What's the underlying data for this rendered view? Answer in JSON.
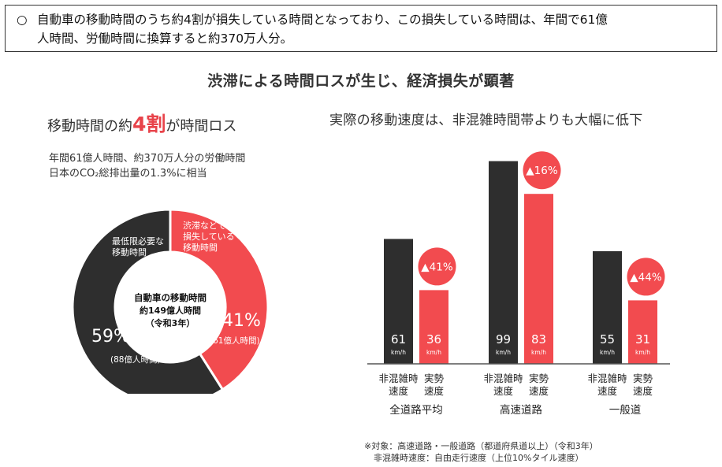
{
  "header": {
    "bullet": "○",
    "line1": "自動車の移動時間のうち約4割が損失している時間となっており、この損失している時間は、年間で61億",
    "line2": "人時間、労働時間に換算すると約370万人分。"
  },
  "main_title": "渋滞による時間ロスが生じ、経済損失が顕著",
  "left_panel": {
    "heading_pre": "移動時間の約",
    "heading_big": "4割",
    "heading_post": "が時間ロス",
    "note1": "年間61億人時間、約370万人分の労働時間",
    "note2": "日本のCO₂総排出量の1.3%に相当"
  },
  "right_panel": {
    "heading": "実際の移動速度は、非混雑時間帯よりも大幅に低下"
  },
  "footnote": {
    "line1": "※対象：高速道路・一般道路（都道府県道以上）（令和3年）",
    "line2": "非混雑時速度：自由走行速度（上位10%タイル速度）"
  },
  "colors": {
    "dark": "#2e2e2e",
    "red": "#f24b4f",
    "accent_text": "#e8434a"
  },
  "chart_data": [
    {
      "type": "pie",
      "variant": "donut",
      "center_label": [
        "自動車の移動時間",
        "約149億人時間",
        "（令和3年）"
      ],
      "slices": [
        {
          "label": "渋滞などで損失している移動時間",
          "label_lines": [
            "渋滞などで",
            "損失している",
            "移動時間"
          ],
          "value": 41,
          "pct_label": "41%",
          "sub_label": "(61億人時間)",
          "color": "#f24b4f"
        },
        {
          "label": "最低限必要な移動時間",
          "label_lines": [
            "最低限必要な",
            "移動時間"
          ],
          "value": 59,
          "pct_label": "59%",
          "sub_label": "(88億人時間)",
          "color": "#2e2e2e"
        }
      ]
    },
    {
      "type": "bar",
      "unit": "km/h",
      "categories": [
        "全道路平均",
        "高速道路",
        "一般道"
      ],
      "series": [
        {
          "name": "非混雑時速度",
          "axis_label": [
            "非混雑時",
            "速度"
          ],
          "color": "#2e2e2e",
          "values": [
            61,
            99,
            55
          ]
        },
        {
          "name": "実勢速度",
          "axis_label": [
            "実勢",
            "速度"
          ],
          "color": "#f24b4f",
          "values": [
            36,
            83,
            31
          ]
        }
      ],
      "annotations": [
        "▲41%",
        "▲16%",
        "▲44%"
      ]
    }
  ]
}
